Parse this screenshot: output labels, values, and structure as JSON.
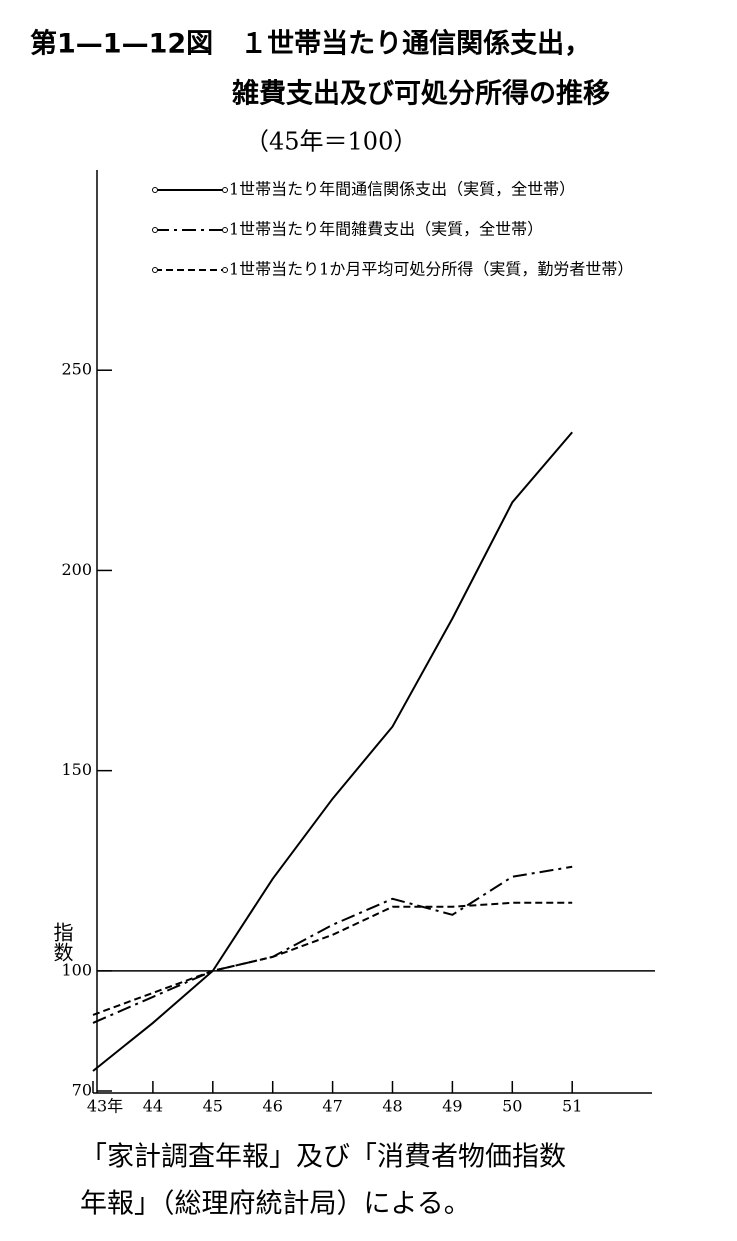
{
  "chart_data": {
    "type": "line",
    "title": [
      "第1—1—12図　１世帯当たり通信関係支出，",
      "雑費支出及び可処分所得の推移"
    ],
    "subtitle": "（45年＝100）",
    "y_label": "指数",
    "categories": [
      "43年",
      "44",
      "45",
      "46",
      "47",
      "48",
      "49",
      "50",
      "51"
    ],
    "series": [
      {
        "name": "1世帯当たり年間通信関係支出（実質，全世帯）",
        "color": "#000",
        "dash": "solid",
        "values": [
          75,
          87,
          100,
          123,
          143,
          161,
          188,
          217,
          234.5
        ]
      },
      {
        "name": "1世帯当たり年間雑費支出（実質，全世帯）",
        "color": "#000",
        "dash": "dashdot",
        "values": [
          87,
          93.5,
          100,
          103.5,
          111.5,
          118,
          114,
          123.5,
          126
        ]
      },
      {
        "name": "1世帯当たり1か月平均可処分所得（実質，勤労者世帯）",
        "color": "#000",
        "dash": "dashed",
        "values": [
          89,
          94.5,
          100,
          103.5,
          109,
          116,
          116,
          117,
          117
        ]
      }
    ],
    "ylim": [
      70,
      300
    ],
    "yticks": [
      70,
      100,
      150,
      200,
      250
    ],
    "reference_line": 100,
    "source": [
      "「家計調査年報」及び「消費者物価指数",
      "年報」（総理府統計局）による。"
    ]
  }
}
